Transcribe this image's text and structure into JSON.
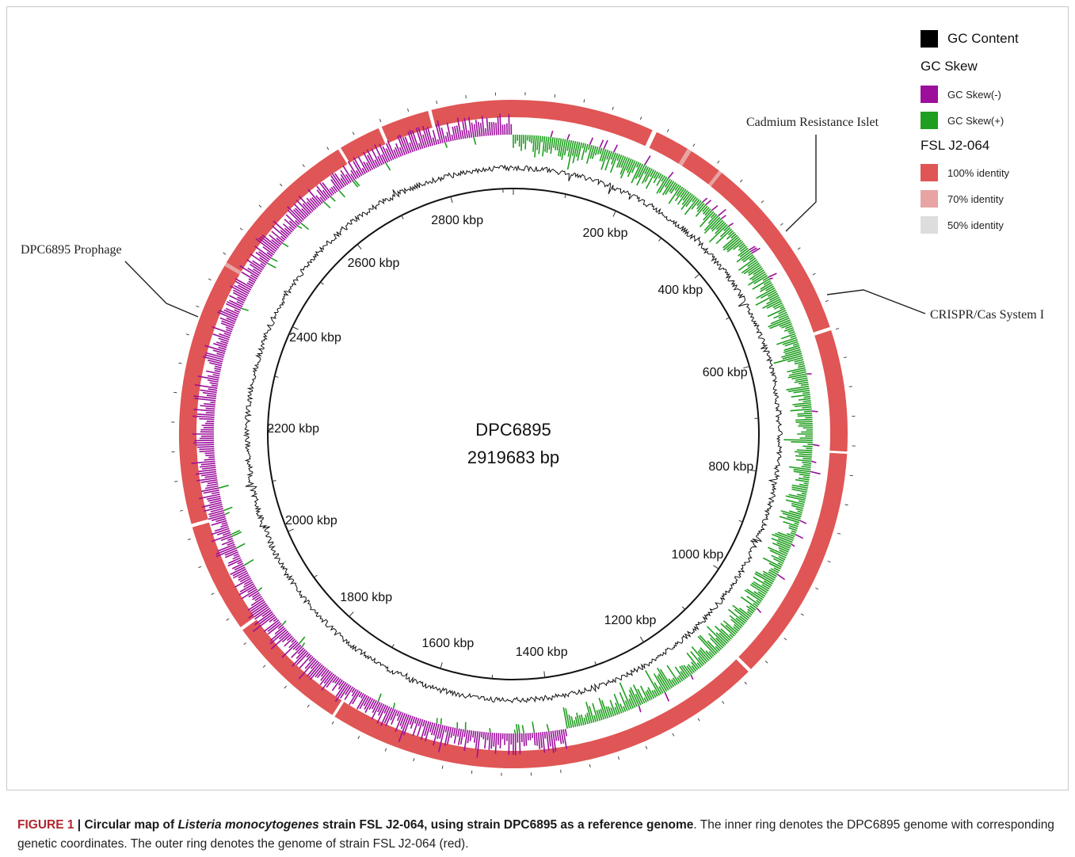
{
  "figure": {
    "center_title": "DPC6895",
    "center_subtitle": "2919683 bp",
    "genome_length_bp": 2919683,
    "tick_labels": [
      "200 kbp",
      "400 kbp",
      "600 kbp",
      "800 kbp",
      "1000 kbp",
      "1200 kbp",
      "1400 kbp",
      "1600 kbp",
      "1800 kbp",
      "2000 kbp",
      "2200 kbp",
      "2400 kbp",
      "2600 kbp",
      "2800 kbp"
    ],
    "annotations": [
      {
        "label": "Cadmium Resistance Islet"
      },
      {
        "label": "CRISPR/Cas System I"
      },
      {
        "label": "DPC6895 Prophage"
      }
    ],
    "rings": {
      "identity_color": "#e05555",
      "identity_light_color": "#e8a3a3",
      "gc_skew_neg_color": "#9b0f9b",
      "gc_skew_pos_color": "#1f9e1f",
      "gc_content_color": "#111111"
    }
  },
  "legend": {
    "gc_content": {
      "label": "GC Content",
      "color": "#000000"
    },
    "gc_skew_header": "GC Skew",
    "gc_skew_neg": {
      "label": "GC Skew(-)",
      "color": "#9b0f9b"
    },
    "gc_skew_pos": {
      "label": "GC Skew(+)",
      "color": "#1f9e1f"
    },
    "strain_header": "FSL J2-064",
    "identity_100": {
      "label": "100% identity",
      "color": "#e05555"
    },
    "identity_70": {
      "label": "70% identity",
      "color": "#e8a3a3"
    },
    "identity_50": {
      "label": "50% identity",
      "color": "#dddddd"
    }
  },
  "caption": {
    "fig_label": "FIGURE 1",
    "separator": " | ",
    "bold_part1": "Circular map of ",
    "bold_italic": "Listeria monocytogenes",
    "bold_part2": " strain FSL J2-064, using strain DPC6895 as a reference genome",
    "rest": ". The inner ring denotes the DPC6895 genome with corresponding genetic coordinates. The outer ring denotes the genome of strain FSL J2-064 (red)."
  }
}
